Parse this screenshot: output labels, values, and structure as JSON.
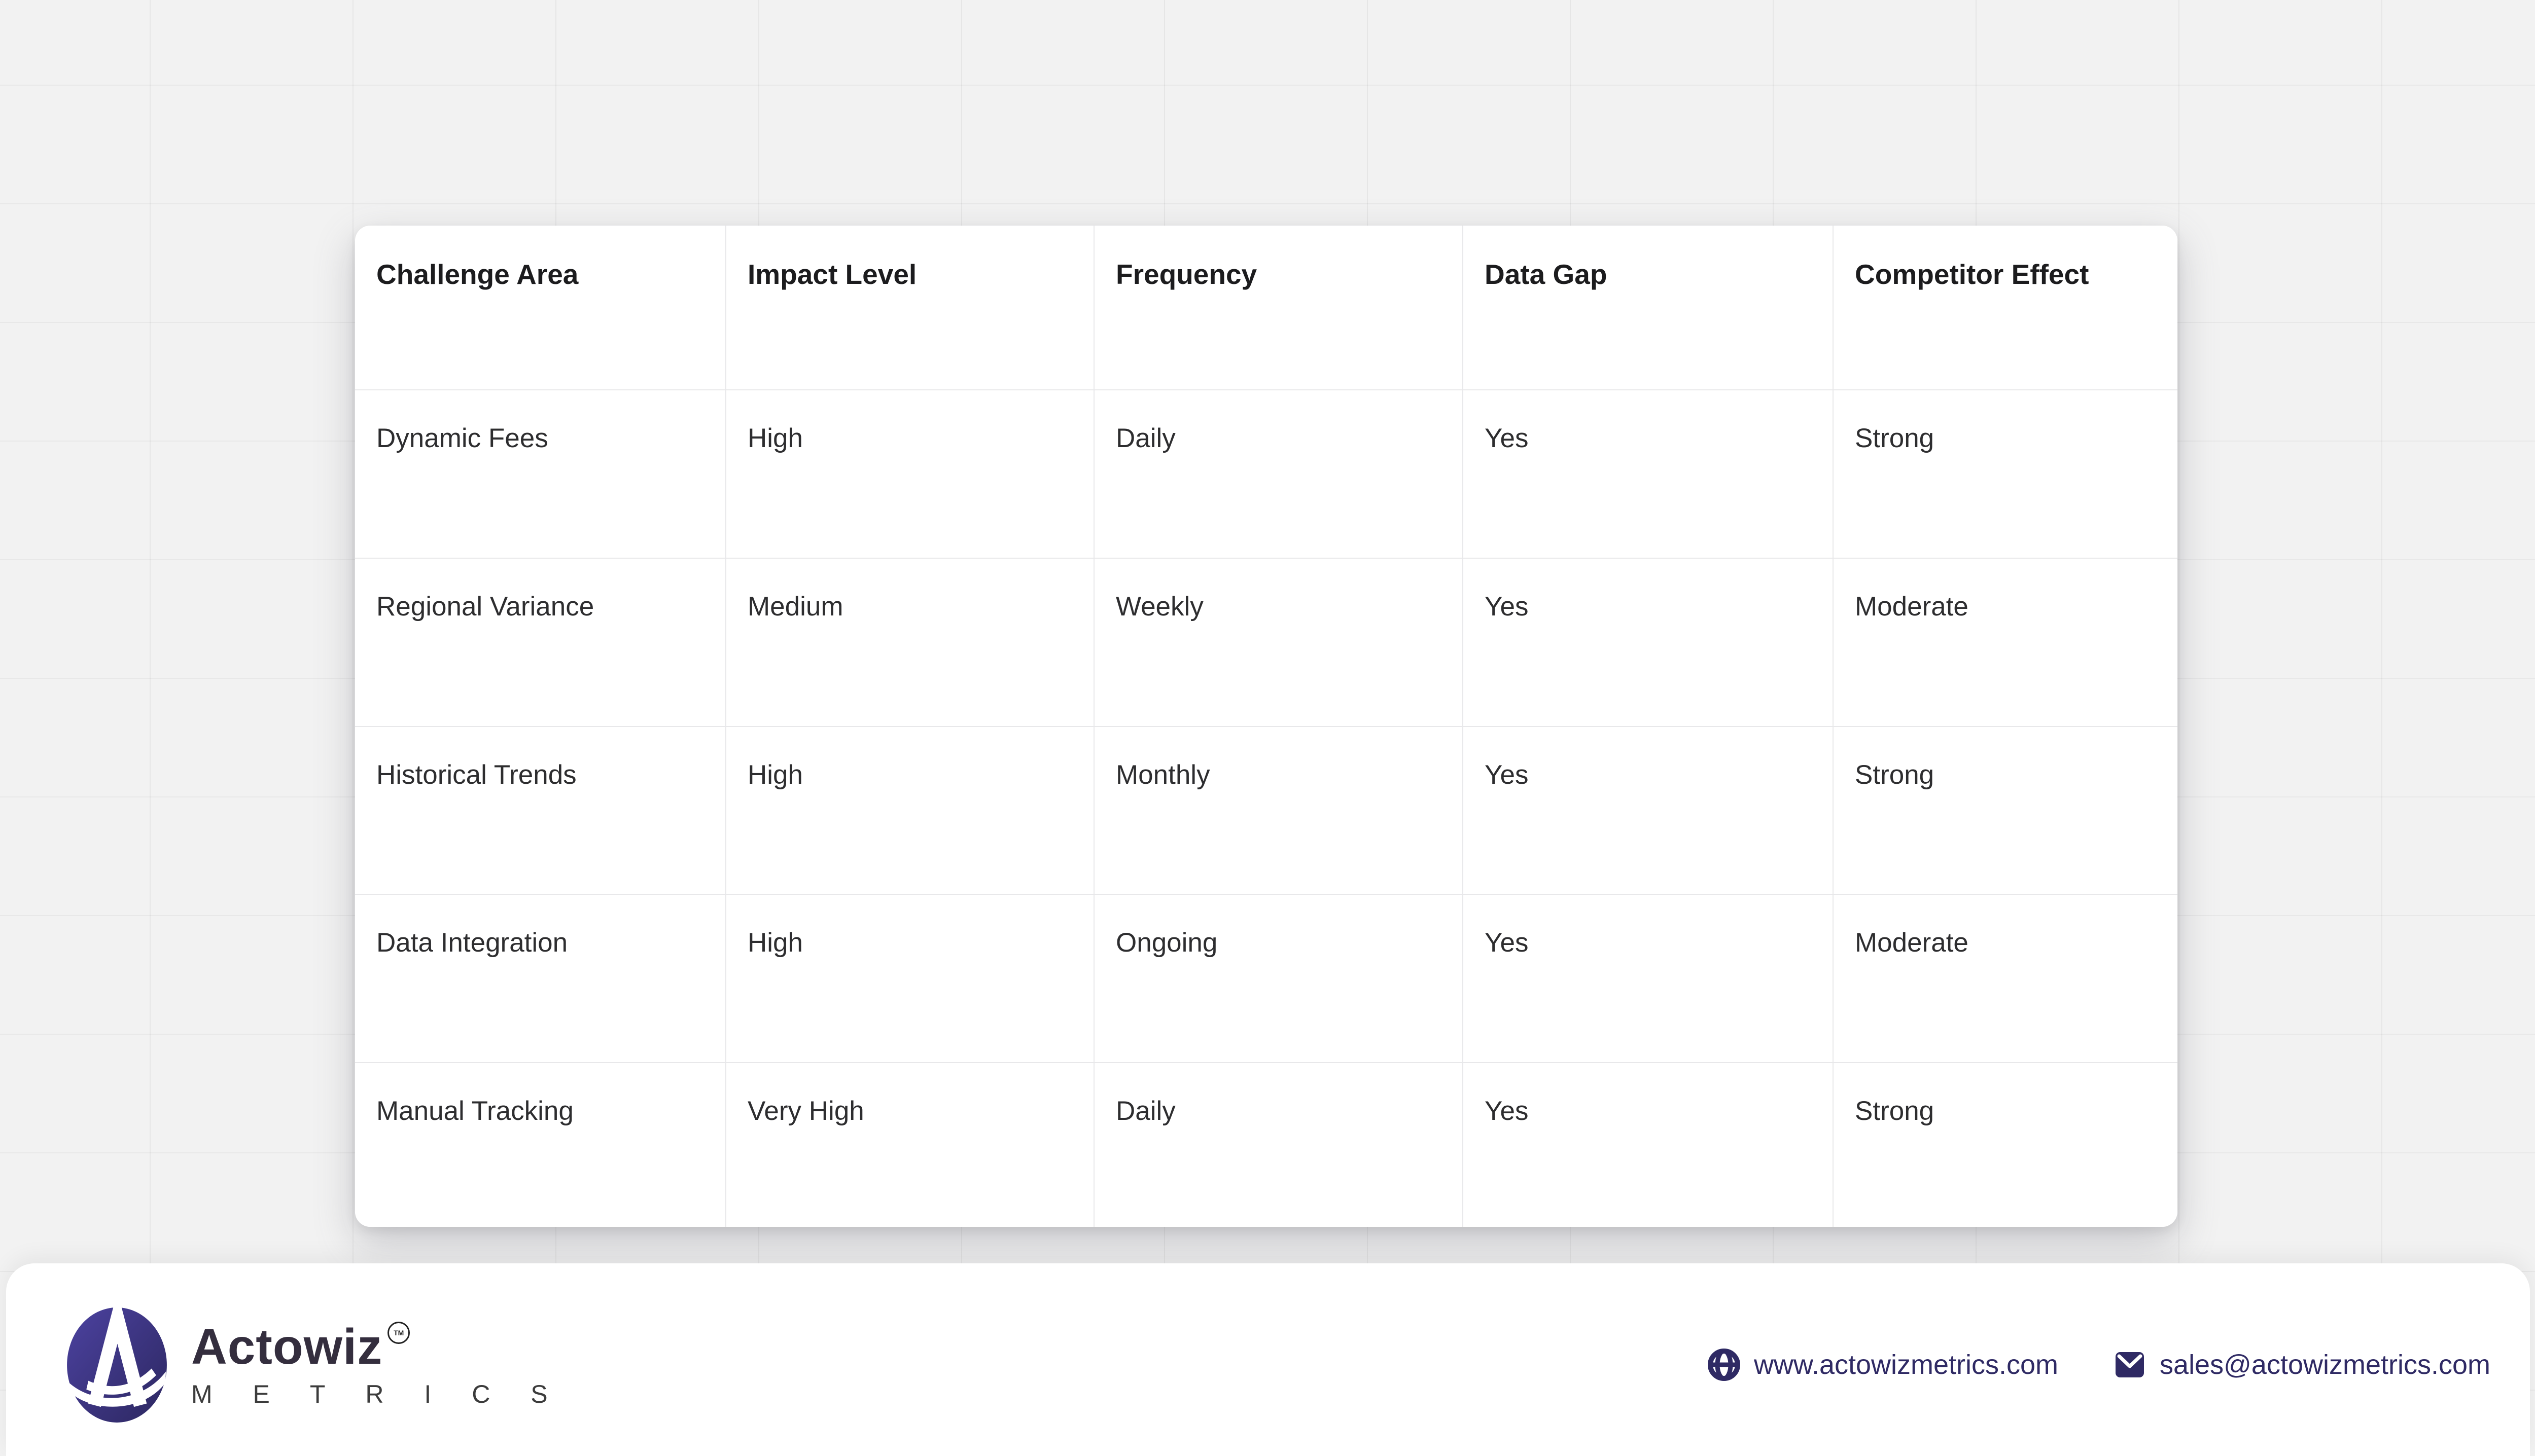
{
  "table": {
    "columns": [
      "Challenge Area",
      "Impact Level",
      "Frequency",
      "Data Gap",
      "Competitor Effect"
    ],
    "rows": [
      [
        "Dynamic Fees",
        "High",
        "Daily",
        "Yes",
        "Strong"
      ],
      [
        "Regional Variance",
        "Medium",
        "Weekly",
        "Yes",
        "Moderate"
      ],
      [
        "Historical Trends",
        "High",
        "Monthly",
        "Yes",
        "Strong"
      ],
      [
        "Data Integration",
        "High",
        "Ongoing",
        "Yes",
        "Moderate"
      ],
      [
        "Manual Tracking",
        "Very High",
        "Daily",
        "Yes",
        "Strong"
      ]
    ]
  },
  "chart_data": {
    "type": "table",
    "title": "",
    "columns": [
      "Challenge Area",
      "Impact Level",
      "Frequency",
      "Data Gap",
      "Competitor Effect"
    ],
    "rows": [
      [
        "Dynamic Fees",
        "High",
        "Daily",
        "Yes",
        "Strong"
      ],
      [
        "Regional Variance",
        "Medium",
        "Weekly",
        "Yes",
        "Moderate"
      ],
      [
        "Historical Trends",
        "High",
        "Monthly",
        "Yes",
        "Strong"
      ],
      [
        "Data Integration",
        "High",
        "Ongoing",
        "Yes",
        "Moderate"
      ],
      [
        "Manual Tracking",
        "Very High",
        "Daily",
        "Yes",
        "Strong"
      ]
    ]
  },
  "footer": {
    "brand": {
      "name": "Actowiz",
      "sub": "M E T R I C S",
      "tm": "TM"
    },
    "website": "www.actowizmetrics.com",
    "email": "sales@actowizmetrics.com",
    "icons": [
      "globe-icon",
      "email-icon",
      "actowiz-logo-icon"
    ]
  },
  "colors": {
    "background": "#f2f2f2",
    "grid_line": "#e6e6e7",
    "card": "#ffffff",
    "table_border": "#e8e8ea",
    "header_text": "#1c1c1e",
    "body_text": "#2d2d2f",
    "accent_indigo": "#2f2a64",
    "logo_gradient_start": "#4c42a0",
    "logo_gradient_end": "#2c2760",
    "brand_text": "#342e3e"
  }
}
